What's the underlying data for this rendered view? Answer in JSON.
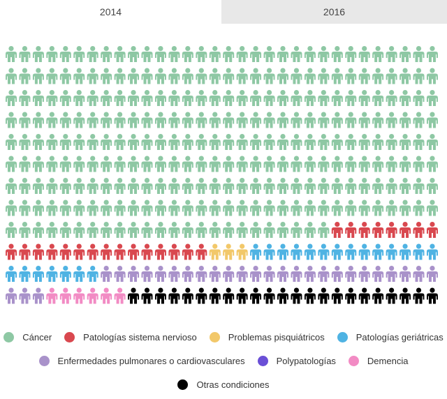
{
  "tabs": [
    {
      "label": "2014",
      "active": true
    },
    {
      "label": "2016",
      "active": false
    }
  ],
  "chart_data": {
    "type": "table",
    "columns": 32,
    "total_icons": 384,
    "categories": [
      {
        "name": "Cáncer",
        "count": 280,
        "color": "#8ec8a4"
      },
      {
        "name": "Patologías sistema nervioso",
        "count": 23,
        "color": "#d9484f"
      },
      {
        "name": "Problemas pisquiátricos",
        "count": 3,
        "color": "#f2c86a"
      },
      {
        "name": "Patologías geriátricas",
        "count": 21,
        "color": "#4fb3e3"
      },
      {
        "name": "Enfermedades pulmonares o cardiovasculares",
        "count": 28,
        "color": "#a992ca"
      },
      {
        "name": "Polypatologías",
        "count": 0,
        "color": "#6a4fd6"
      },
      {
        "name": "Demencia",
        "count": 6,
        "color": "#f28bc4"
      },
      {
        "name": "Otras condiciones",
        "count": 23,
        "color": "#000000"
      }
    ]
  }
}
